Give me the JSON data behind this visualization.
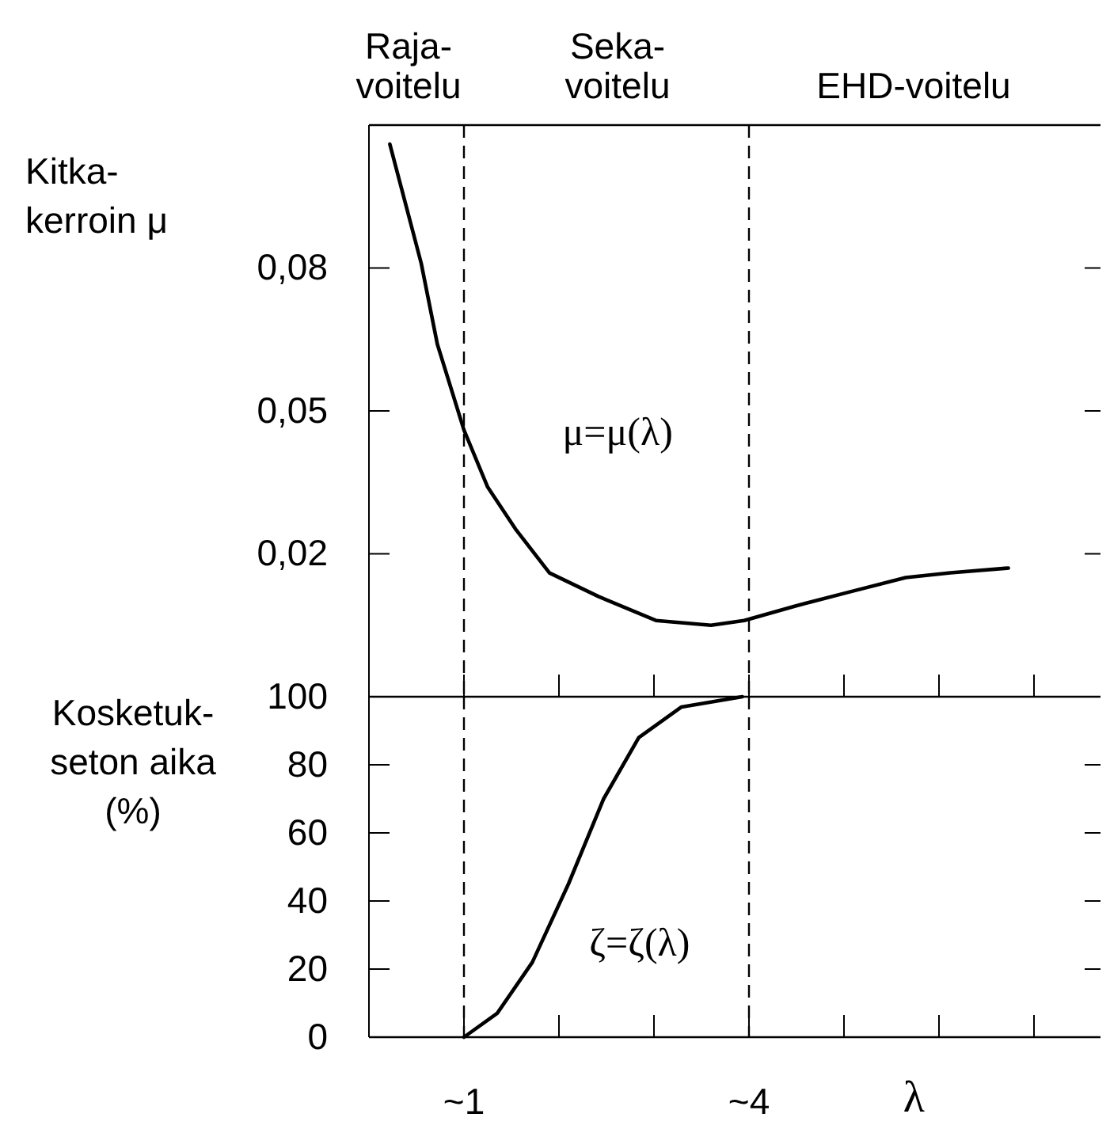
{
  "chart_data": [
    {
      "type": "line",
      "ylabel": "Kitka-\nkerroin μ",
      "annotations": [
        "Raja-\nvoitelu",
        "Seka-\nvoitelu",
        "EHD-voitelu"
      ],
      "series": [
        {
          "name": "μ=μ(λ)",
          "color": "#000000",
          "x": [
            0.22,
            0.55,
            0.72,
            1.0,
            1.25,
            1.55,
            1.9,
            2.42,
            3.02,
            3.6,
            3.95,
            4.48,
            5.06,
            5.65,
            6.12,
            6.73
          ],
          "values": [
            0.106,
            0.081,
            0.064,
            0.046,
            0.034,
            0.025,
            0.016,
            0.011,
            0.006,
            0.005,
            0.006,
            0.009,
            0.012,
            0.015,
            0.016,
            0.017
          ]
        }
      ],
      "xlim": [
        0,
        7.7
      ],
      "ylim": [
        -0.01,
        0.11
      ],
      "xticks": [
        {
          "value": 1,
          "label": null
        },
        {
          "value": 2,
          "label": null
        },
        {
          "value": 3,
          "label": null
        },
        {
          "value": 4,
          "label": null
        },
        {
          "value": 5,
          "label": null
        },
        {
          "value": 6,
          "label": null
        },
        {
          "value": 7,
          "label": null
        }
      ],
      "yticks": [
        {
          "value": 0.02,
          "label": "0,02"
        },
        {
          "value": 0.05,
          "label": "0,05"
        },
        {
          "value": 0.08,
          "label": "0,08"
        }
      ],
      "ref_lines": [
        {
          "axis": "x",
          "value": 1,
          "label": null,
          "line_style": "dashed"
        },
        {
          "axis": "x",
          "value": 4,
          "label": null,
          "line_style": "dashed"
        }
      ],
      "tick_labels": "y",
      "grid": false,
      "legend": false,
      "marker": "none",
      "line_style": "solid"
    },
    {
      "type": "line",
      "xlabel": "λ",
      "ylabel": "Kosketuk-\nseton aika\n(%)",
      "series": [
        {
          "name": "ζ=ζ(λ)",
          "color": "#000000",
          "x": [
            1.0,
            1.35,
            1.72,
            2.1,
            2.47,
            2.84,
            3.29,
            3.93
          ],
          "values": [
            0,
            7,
            22,
            45,
            70,
            88,
            97,
            100
          ]
        }
      ],
      "xlim": [
        0,
        7.7
      ],
      "ylim": [
        0,
        100
      ],
      "xticks": [
        {
          "value": 1,
          "label": "~1"
        },
        {
          "value": 2,
          "label": null
        },
        {
          "value": 3,
          "label": null
        },
        {
          "value": 4,
          "label": "~4"
        },
        {
          "value": 5,
          "label": null
        },
        {
          "value": 6,
          "label": null
        },
        {
          "value": 7,
          "label": null
        }
      ],
      "yticks": [
        0,
        20,
        40,
        60,
        80,
        100
      ],
      "ref_lines": [
        {
          "axis": "x",
          "value": 1,
          "label": null,
          "line_style": "dashed"
        },
        {
          "axis": "x",
          "value": 4,
          "label": null,
          "line_style": "dashed"
        }
      ],
      "grid": false,
      "legend": false,
      "marker": "none",
      "line_style": "solid"
    }
  ]
}
